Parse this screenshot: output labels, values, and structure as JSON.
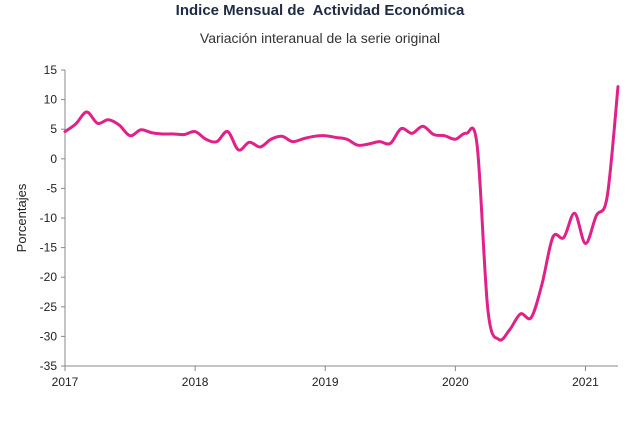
{
  "chart_data": {
    "type": "line",
    "title": "Indice Mensual de  Actividad Económica",
    "subtitle": "Variación interanual de la serie original",
    "xlabel": "",
    "ylabel": "Porcentajes",
    "ylim": [
      -35,
      15
    ],
    "yticks": [
      15,
      10,
      5,
      0,
      -5,
      -10,
      -15,
      -20,
      -25,
      -30,
      -35
    ],
    "xticks": [
      "2017",
      "2018",
      "2019",
      "2020",
      "2021"
    ],
    "grid": false,
    "color": "#e0218a",
    "x": [
      "2017-01",
      "2017-02",
      "2017-03",
      "2017-04",
      "2017-05",
      "2017-06",
      "2017-07",
      "2017-08",
      "2017-09",
      "2017-10",
      "2017-11",
      "2017-12",
      "2018-01",
      "2018-02",
      "2018-03",
      "2018-04",
      "2018-05",
      "2018-06",
      "2018-07",
      "2018-08",
      "2018-09",
      "2018-10",
      "2018-11",
      "2018-12",
      "2019-01",
      "2019-02",
      "2019-03",
      "2019-04",
      "2019-05",
      "2019-06",
      "2019-07",
      "2019-08",
      "2019-09",
      "2019-10",
      "2019-11",
      "2019-12",
      "2020-01",
      "2020-02",
      "2020-03",
      "2020-04",
      "2020-05",
      "2020-06",
      "2020-07",
      "2020-08",
      "2020-09",
      "2020-10",
      "2020-11",
      "2020-12",
      "2021-01",
      "2021-02",
      "2021-03",
      "2021-04"
    ],
    "values": [
      4.6,
      5.9,
      7.9,
      6.0,
      6.6,
      5.7,
      3.9,
      4.9,
      4.4,
      4.2,
      4.2,
      4.1,
      4.6,
      3.3,
      2.9,
      4.6,
      1.5,
      2.8,
      2.0,
      3.3,
      3.8,
      2.9,
      3.4,
      3.8,
      3.9,
      3.6,
      3.3,
      2.3,
      2.5,
      2.9,
      2.6,
      5.1,
      4.3,
      5.5,
      4.1,
      3.9,
      3.3,
      4.3,
      2.4,
      -25.5,
      -30.5,
      -28.9,
      -26.2,
      -26.8,
      -21.1,
      -13.2,
      -13.3,
      -9.2,
      -14.3,
      -9.6,
      -6.4,
      12.2
    ]
  }
}
